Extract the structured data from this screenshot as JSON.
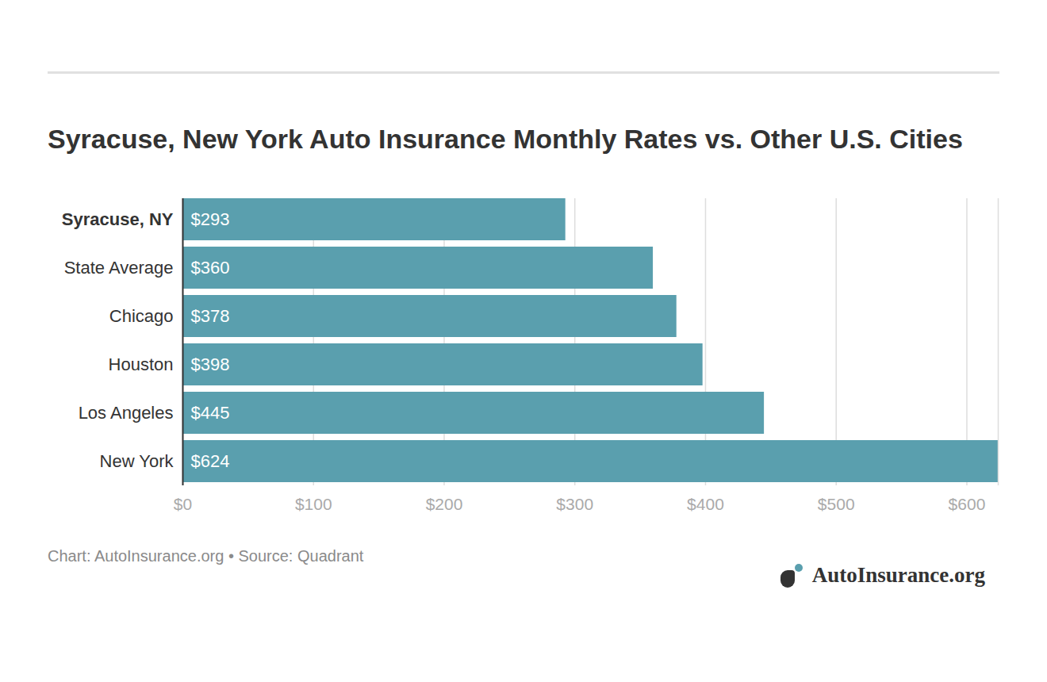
{
  "chart_data": {
    "type": "bar",
    "orientation": "horizontal",
    "title": "Syracuse, New York Auto Insurance Monthly Rates vs. Other U.S. Cities",
    "source": "Chart: AutoInsurance.org • Source: Quadrant",
    "logo_text": "AutoInsurance.org",
    "categories": [
      "Syracuse, NY",
      "State Average",
      "Chicago",
      "Houston",
      "Los Angeles",
      "New York"
    ],
    "values": [
      293,
      360,
      378,
      398,
      445,
      624
    ],
    "value_labels": [
      "$293",
      "$360",
      "$378",
      "$398",
      "$445",
      "$624"
    ],
    "data_labels": true,
    "color": "#5a9fae",
    "xlim": [
      0,
      624
    ],
    "xticks": [
      {
        "value": 0,
        "label": "$0"
      },
      {
        "value": 100,
        "label": "$100"
      },
      {
        "value": 200,
        "label": "$200"
      },
      {
        "value": 300,
        "label": "$300"
      },
      {
        "value": 400,
        "label": "$400"
      },
      {
        "value": 500,
        "label": "$500"
      },
      {
        "value": 600,
        "label": "$600"
      }
    ],
    "grid": true
  }
}
